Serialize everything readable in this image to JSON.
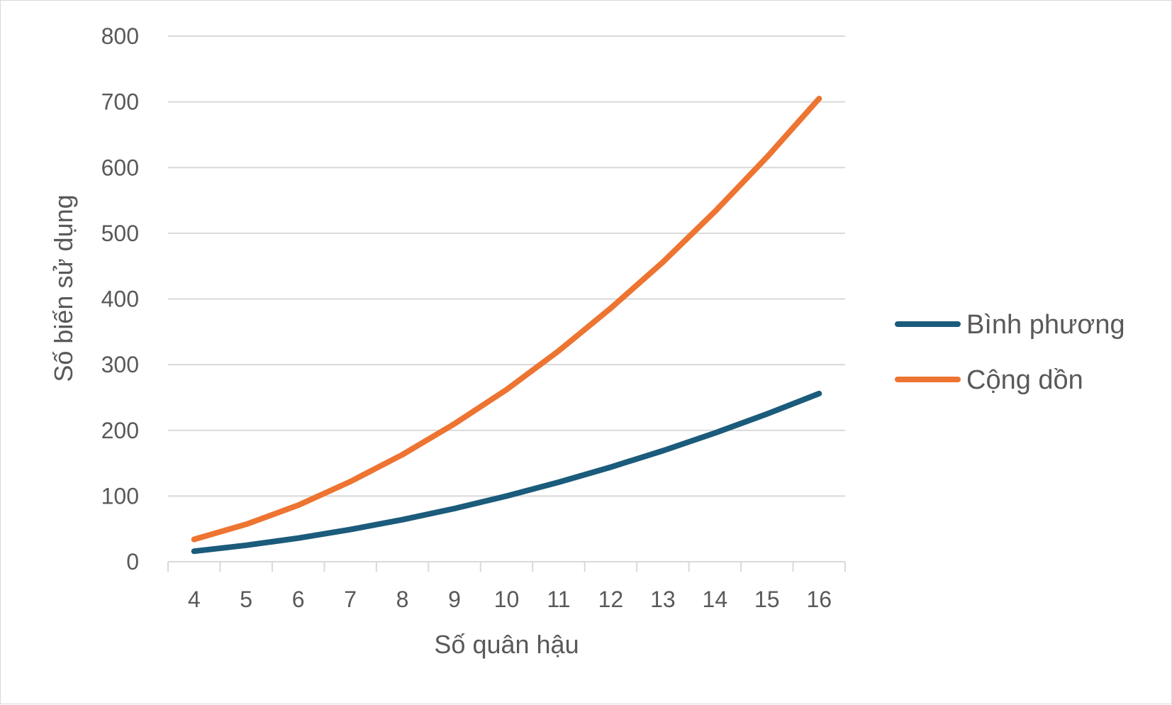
{
  "chart_data": {
    "type": "line",
    "title": "",
    "xlabel": "Số quân hậu",
    "ylabel": "Số biến sử dụng",
    "categories": [
      "4",
      "5",
      "6",
      "7",
      "8",
      "9",
      "10",
      "11",
      "12",
      "13",
      "14",
      "15",
      "16"
    ],
    "x": [
      4,
      5,
      6,
      7,
      8,
      9,
      10,
      11,
      12,
      13,
      14,
      15,
      16
    ],
    "ylim": [
      0,
      800
    ],
    "yticks": [
      "0",
      "100",
      "200",
      "300",
      "400",
      "500",
      "600",
      "700",
      "800"
    ],
    "grid": true,
    "legend_position": "right",
    "series": [
      {
        "name": "Bình phương",
        "color": "#1b5b7b",
        "values": [
          16,
          25,
          36,
          49,
          64,
          81,
          100,
          121,
          144,
          169,
          196,
          225,
          256
        ]
      },
      {
        "name": "Cộng dồn",
        "color": "#ed7431",
        "values": [
          34,
          57,
          86,
          122,
          163,
          210,
          262,
          321,
          386,
          456,
          533,
          616,
          705
        ]
      }
    ]
  }
}
